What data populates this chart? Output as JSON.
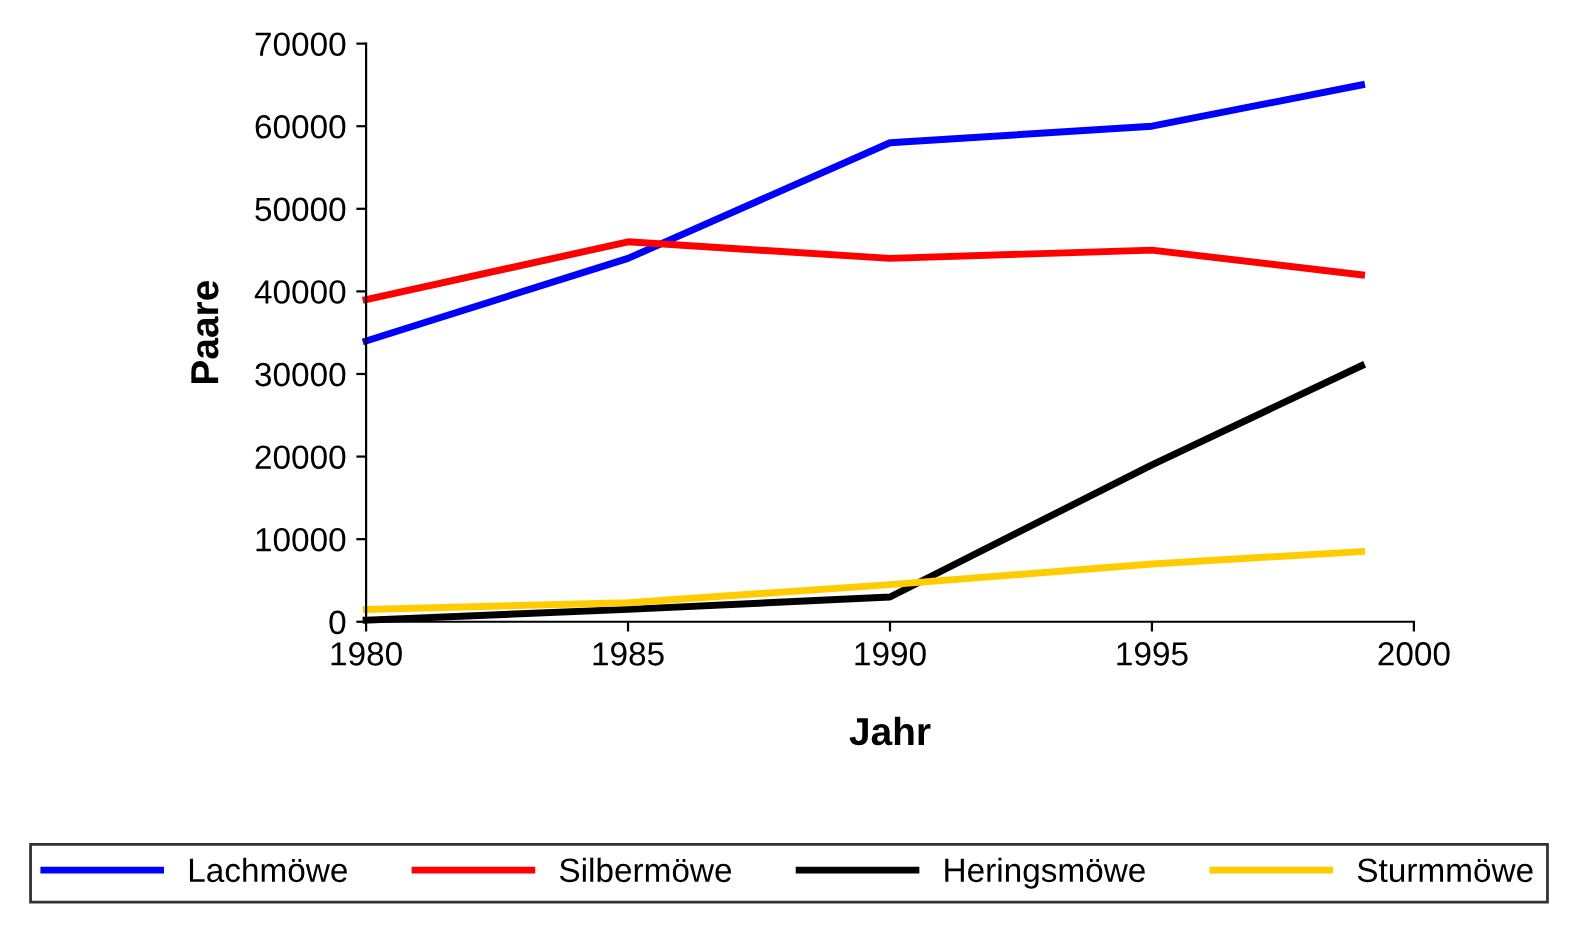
{
  "chart_data": {
    "type": "line",
    "xlabel": "Jahr",
    "ylabel": "Paare",
    "x": [
      1980,
      1985,
      1990,
      1995,
      1999
    ],
    "series": [
      {
        "name": "Lachmöwe",
        "color": "#0000ff",
        "values": [
          34000,
          44000,
          58000,
          60000,
          65000
        ]
      },
      {
        "name": "Silbermöwe",
        "color": "#ff0000",
        "values": [
          39000,
          46000,
          44000,
          45000,
          42000
        ]
      },
      {
        "name": "Heringsmöwe",
        "color": "#000000",
        "values": [
          200,
          1500,
          3000,
          19000,
          31000
        ]
      },
      {
        "name": "Sturmmöwe",
        "color": "#ffcc00",
        "values": [
          1500,
          2300,
          4500,
          7000,
          8500
        ]
      }
    ],
    "xlim": [
      1980,
      2000
    ],
    "xticks": [
      1980,
      1985,
      1990,
      1995,
      2000
    ],
    "ylim": [
      0,
      70000
    ],
    "yticks": [
      0,
      10000,
      20000,
      30000,
      40000,
      50000,
      60000,
      70000
    ],
    "grid": false,
    "legend": "bottom",
    "marker": "none",
    "line_style": "solid"
  }
}
